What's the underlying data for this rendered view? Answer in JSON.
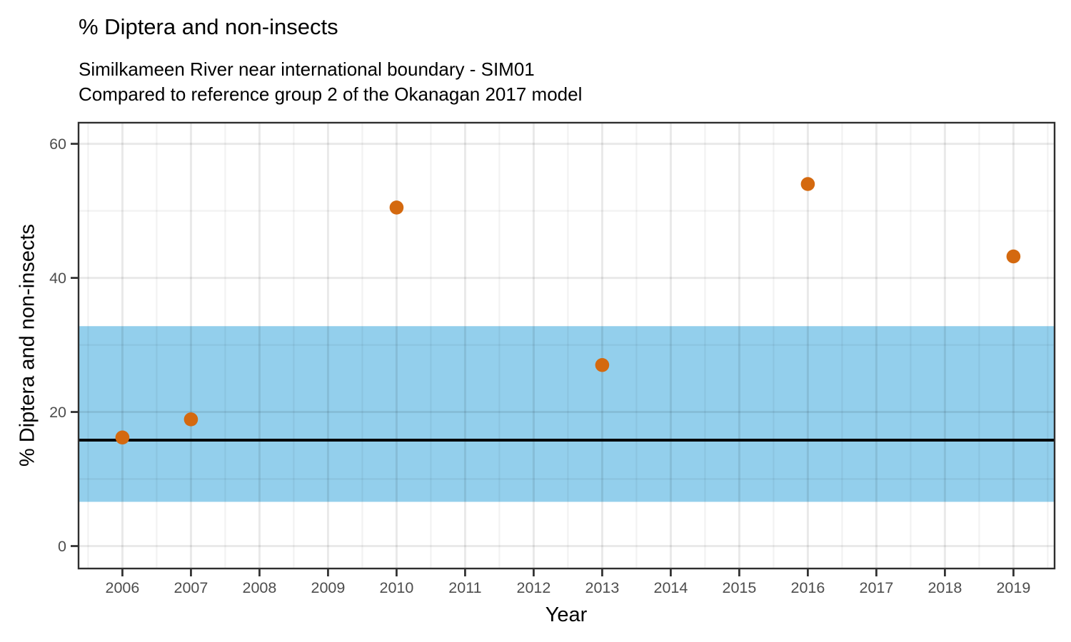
{
  "header": {
    "title": "% Diptera and non-insects",
    "subtitle_line1": "Similkameen River near international boundary - SIM01",
    "subtitle_line2": "Compared to reference group 2 of the Okanagan 2017 model"
  },
  "axes": {
    "x_label": "Year",
    "y_label": "% Diptera and non-insects"
  },
  "colors": {
    "point": "#D4690F",
    "band": "#93CFEC",
    "reference_line": "#000000",
    "panel_border": "#2F2F2F",
    "tick_mark": "#333333",
    "tick_label": "#4D4D4D",
    "grid_major": "rgba(0,0,0,0.085)",
    "grid_minor": "rgba(0,0,0,0.05)"
  },
  "chart_data": {
    "type": "scatter",
    "title": "% Diptera and non-insects",
    "subtitle": [
      "Similkameen River near international boundary - SIM01",
      "Compared to reference group 2 of the Okanagan 2017 model"
    ],
    "xlabel": "Year",
    "ylabel": "% Diptera and non-insects",
    "x": [
      2006,
      2007,
      2010,
      2013,
      2016,
      2019
    ],
    "y": [
      16.2,
      18.9,
      50.5,
      27.0,
      54.0,
      43.2
    ],
    "x_ticks": [
      2006,
      2007,
      2008,
      2009,
      2010,
      2011,
      2012,
      2013,
      2014,
      2015,
      2016,
      2017,
      2018,
      2019
    ],
    "y_ticks": [
      0,
      20,
      40,
      60
    ],
    "x_minor": [
      2005.5,
      2006.5,
      2007.5,
      2008.5,
      2009.5,
      2010.5,
      2011.5,
      2012.5,
      2013.5,
      2014.5,
      2015.5,
      2016.5,
      2017.5,
      2018.5,
      2019.5
    ],
    "y_minor": [
      10,
      30,
      50
    ],
    "xlim": [
      2005.36,
      2019.6
    ],
    "ylim": [
      -3.35,
      63.15
    ],
    "reference_band": {
      "ymin": 6.6,
      "ymax": 32.8
    },
    "reference_line_y": 15.8,
    "grid": true,
    "legend": "none"
  }
}
